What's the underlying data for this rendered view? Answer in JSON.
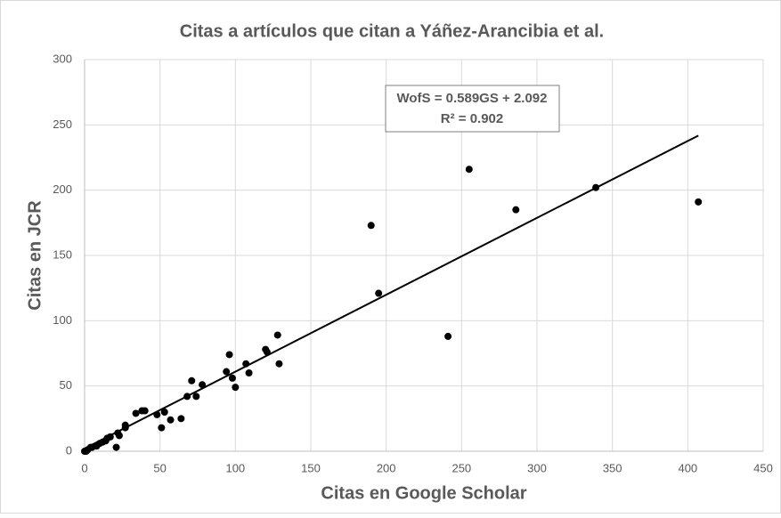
{
  "chart_data": {
    "type": "scatter",
    "title": "Citas a artículos que citan a Yáñez-Arancibia et al.",
    "x_label": "Citas en Google Scholar",
    "y_label": "Citas en JCR",
    "annotations": [
      "WofS = 0.589GS + 2.092",
      "R² = 0.902"
    ],
    "color": "#000000",
    "x": [
      0,
      1,
      2,
      4,
      5,
      8,
      10,
      12,
      14,
      15,
      17,
      21,
      22,
      23,
      27,
      27,
      34,
      38,
      40,
      48,
      51,
      53,
      57,
      64,
      68,
      71,
      74,
      78,
      94,
      96,
      98,
      100,
      107,
      109,
      120,
      121,
      128,
      129,
      190,
      195,
      241,
      255,
      286,
      339,
      407
    ],
    "values": [
      0,
      0,
      1,
      3,
      3,
      4,
      6,
      7,
      8,
      10,
      11,
      3,
      14,
      12,
      20,
      18,
      29,
      31,
      31,
      28,
      18,
      30,
      24,
      25,
      42,
      54,
      42,
      51,
      61,
      74,
      56,
      49,
      67,
      60,
      78,
      76,
      89,
      67,
      173,
      121,
      88,
      216,
      185,
      202,
      191
    ],
    "trendline": {
      "slope": 0.589,
      "intercept": 2.092,
      "x_range": [
        0,
        407
      ]
    },
    "xlim": [
      0,
      450
    ],
    "xticks": [
      0,
      50,
      100,
      150,
      200,
      250,
      300,
      350,
      400,
      450
    ],
    "ylim": [
      0,
      300
    ],
    "yticks": [
      0,
      50,
      100,
      150,
      200,
      250,
      300
    ],
    "grid": true
  }
}
